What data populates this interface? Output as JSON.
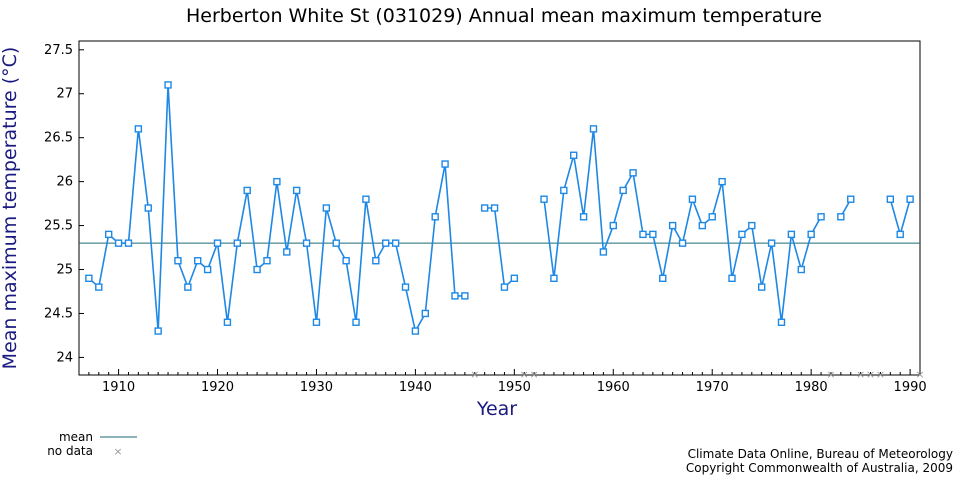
{
  "chart_data": {
    "type": "line",
    "title": "Herberton White St (031029) Annual mean maximum temperature",
    "xlabel": "Year",
    "ylabel": "Mean maximum temperature (°C)",
    "xlim": [
      1906,
      1991
    ],
    "ylim": [
      23.8,
      27.6
    ],
    "x_ticks": [
      1910,
      1920,
      1930,
      1940,
      1950,
      1960,
      1970,
      1980,
      1990
    ],
    "y_ticks": [
      24,
      24.5,
      25,
      25.5,
      26,
      26.5,
      27,
      27.5
    ],
    "y_tick_labels": [
      "24",
      "24.5",
      "25",
      "25.5",
      "26",
      "26.5",
      "27",
      "27.5"
    ],
    "mean": 25.3,
    "series": [
      {
        "x": [
          1907,
          1908,
          1909,
          1910,
          1911,
          1912,
          1913,
          1914,
          1915,
          1916,
          1917,
          1918,
          1919,
          1920,
          1921,
          1922,
          1923,
          1924,
          1925,
          1926,
          1927,
          1928,
          1929,
          1930,
          1931,
          1932,
          1933,
          1934,
          1935,
          1936,
          1937,
          1938,
          1939,
          1940,
          1941,
          1942,
          1943,
          1944,
          1945,
          1946,
          1947,
          1948,
          1949,
          1950,
          1951,
          1952,
          1953,
          1954,
          1955,
          1956,
          1957,
          1958,
          1959,
          1960,
          1961,
          1962,
          1963,
          1964,
          1965,
          1966,
          1967,
          1968,
          1969,
          1970,
          1971,
          1972,
          1973,
          1974,
          1975,
          1976,
          1977,
          1978,
          1979,
          1980,
          1981,
          1982,
          1983,
          1984,
          1985,
          1986,
          1987,
          1988,
          1989,
          1990
        ],
        "values": [
          24.9,
          24.8,
          25.4,
          25.3,
          25.3,
          26.6,
          25.7,
          24.3,
          27.1,
          25.1,
          24.8,
          25.1,
          25.0,
          25.3,
          24.4,
          25.3,
          25.9,
          25.0,
          25.1,
          26.0,
          25.2,
          25.9,
          25.3,
          24.4,
          25.7,
          25.3,
          25.1,
          24.4,
          25.8,
          25.1,
          25.3,
          25.3,
          24.8,
          24.3,
          24.5,
          25.6,
          26.2,
          24.7,
          24.7,
          null,
          25.7,
          25.7,
          24.8,
          24.9,
          null,
          null,
          25.8,
          24.9,
          25.9,
          26.3,
          25.6,
          26.6,
          25.2,
          25.5,
          25.9,
          26.1,
          25.4,
          25.4,
          24.9,
          25.5,
          25.3,
          25.8,
          25.5,
          25.6,
          26.0,
          24.9,
          25.4,
          25.5,
          24.8,
          25.3,
          24.4,
          25.4,
          25.0,
          25.4,
          25.6,
          null,
          25.6,
          25.8,
          null,
          null,
          null,
          25.8,
          25.4,
          25.8
        ]
      }
    ],
    "no_data_years": [
      1946,
      1951,
      1952,
      1982,
      1985,
      1986,
      1987,
      1991
    ],
    "colors": {
      "series": "#1e88e5",
      "mean": "#1a6a70",
      "no_data": "#9a9a9a",
      "axis_label": "#1a1a80"
    },
    "legend": {
      "placement": "bottom-left",
      "mean_label": "mean",
      "no_data_label": "no data"
    },
    "grid": false
  },
  "credits": {
    "line1": "Climate Data Online, Bureau of Meteorology",
    "line2": "Copyright Commonwealth of Australia, 2009"
  }
}
